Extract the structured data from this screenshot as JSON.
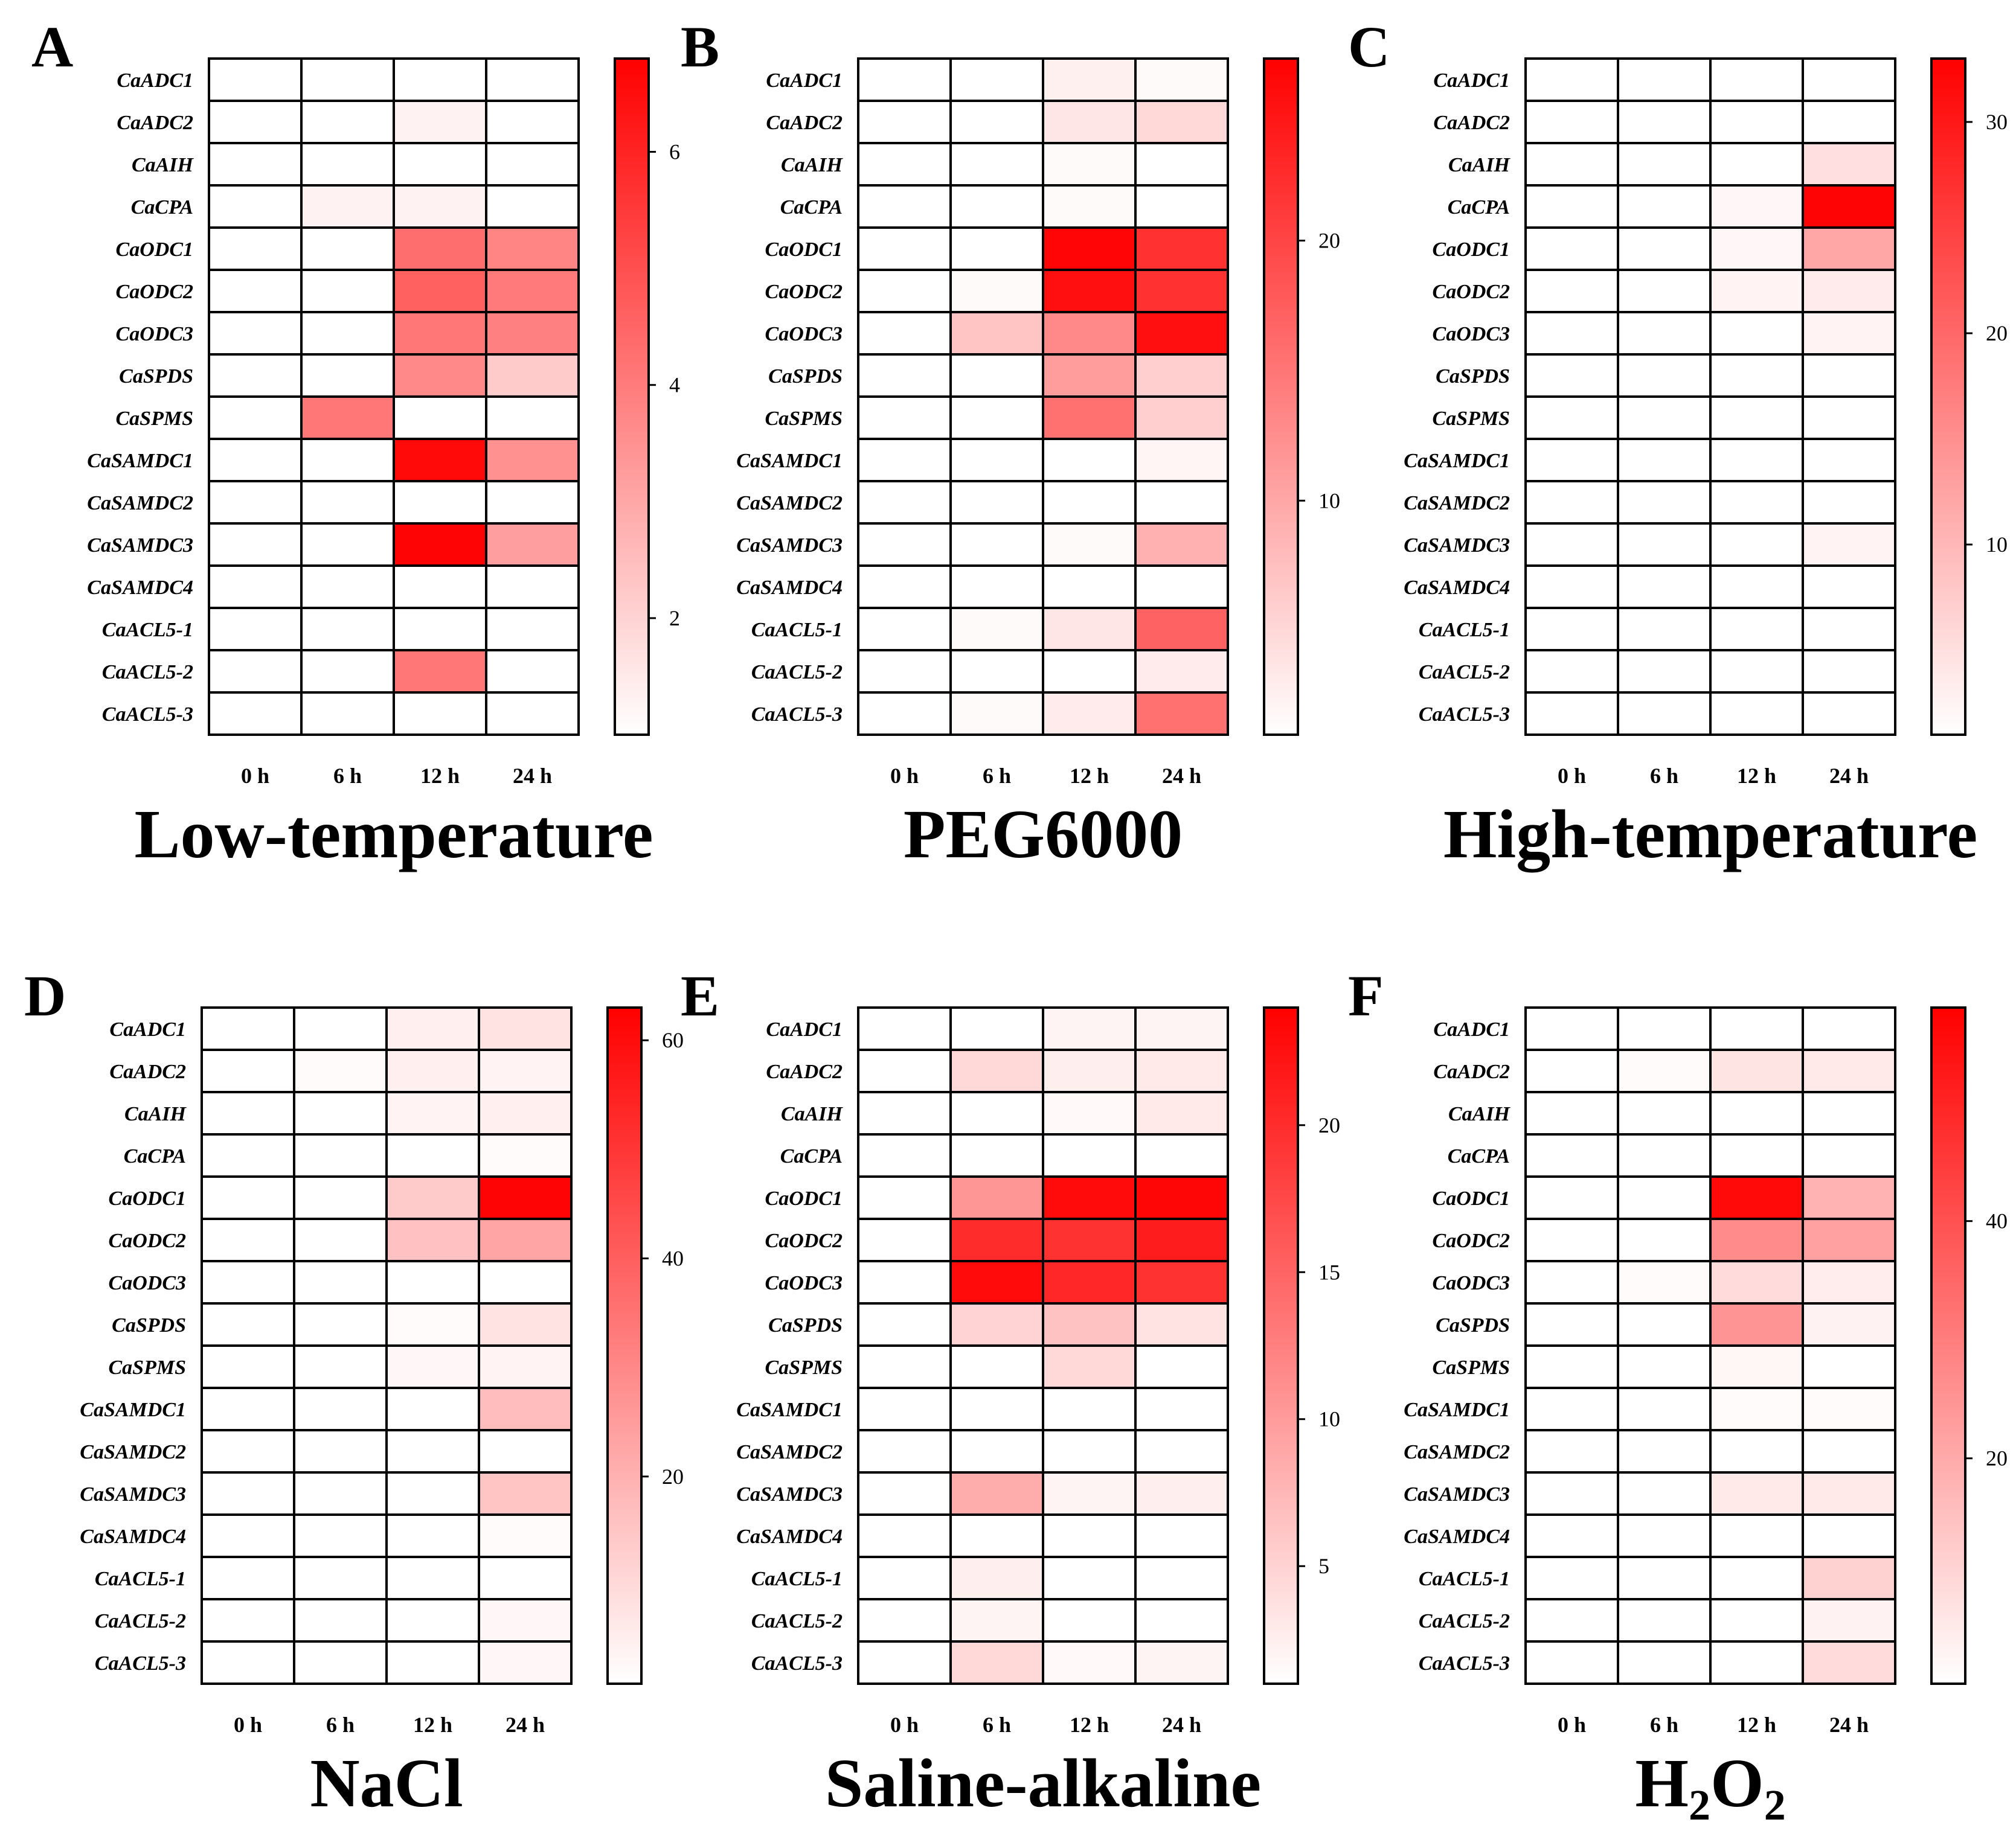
{
  "colors": {
    "low": "#ffffff",
    "high": "#ff0000",
    "grid": "#000000"
  },
  "genes": [
    "CaADC1",
    "CaADC2",
    "CaAIH",
    "CaCPA",
    "CaODC1",
    "CaODC2",
    "CaODC3",
    "CaSPDS",
    "CaSPMS",
    "CaSAMDC1",
    "CaSAMDC2",
    "CaSAMDC3",
    "CaSAMDC4",
    "CaACL5-1",
    "CaACL5-2",
    "CaACL5-3"
  ],
  "time_points": [
    "0 h",
    "6 h",
    "12 h",
    "24 h"
  ],
  "chart_data": [
    {
      "type": "heatmap",
      "panel": "A",
      "title": "Low-temperature",
      "scale_min": 1,
      "scale_max": 6.8,
      "ticks": [
        2,
        4,
        6
      ],
      "values": [
        [
          1,
          1,
          1,
          1
        ],
        [
          1,
          1,
          1.3,
          1
        ],
        [
          1,
          1,
          1,
          1
        ],
        [
          1,
          1.3,
          1.3,
          1
        ],
        [
          1,
          1,
          4.3,
          3.8
        ],
        [
          1,
          1,
          4.6,
          4.0
        ],
        [
          1,
          1,
          4.1,
          3.9
        ],
        [
          1,
          1,
          3.7,
          2.2
        ],
        [
          1,
          4.1,
          1,
          1
        ],
        [
          1,
          1,
          6.6,
          3.5
        ],
        [
          1,
          1,
          1,
          1
        ],
        [
          1,
          1,
          6.7,
          3.2
        ],
        [
          1,
          1,
          1,
          1
        ],
        [
          1,
          1,
          1,
          1
        ],
        [
          1,
          1,
          4.1,
          1
        ],
        [
          1,
          1,
          1,
          1
        ]
      ]
    },
    {
      "type": "heatmap",
      "panel": "B",
      "title": "PEG6000",
      "scale_min": 1,
      "scale_max": 27,
      "ticks": [
        10,
        20
      ],
      "values": [
        [
          1,
          1,
          2.5,
          1.5
        ],
        [
          1,
          1,
          3.5,
          5
        ],
        [
          1,
          1,
          1.5,
          1
        ],
        [
          1,
          1,
          1.5,
          1
        ],
        [
          1,
          1,
          26.5,
          22
        ],
        [
          1,
          1.5,
          25.5,
          22
        ],
        [
          1,
          7,
          13,
          25.5
        ],
        [
          1,
          1,
          11,
          6
        ],
        [
          1,
          1,
          15.5,
          6
        ],
        [
          1,
          1,
          1,
          2
        ],
        [
          1,
          1,
          1,
          1
        ],
        [
          1,
          1,
          1.5,
          9
        ],
        [
          1,
          1,
          1,
          1
        ],
        [
          1,
          1.5,
          3.5,
          17
        ],
        [
          1,
          1,
          1,
          3
        ],
        [
          1,
          1.5,
          3,
          15.5
        ]
      ]
    },
    {
      "type": "heatmap",
      "panel": "C",
      "title": "High-temperature",
      "sup_title": null,
      "scale_min": 1,
      "scale_max": 33,
      "ticks": [
        10,
        20,
        30
      ],
      "values": [
        [
          1,
          1,
          1,
          1
        ],
        [
          1,
          1,
          1,
          1
        ],
        [
          1,
          1,
          1,
          5
        ],
        [
          1,
          1,
          2,
          32.5
        ],
        [
          1,
          1,
          2,
          12
        ],
        [
          1,
          1,
          2.5,
          3.5
        ],
        [
          1,
          1,
          1,
          2.5
        ],
        [
          1,
          1,
          1,
          1
        ],
        [
          1,
          1,
          1,
          1
        ],
        [
          1,
          1,
          1,
          1
        ],
        [
          1,
          1,
          1,
          1
        ],
        [
          1,
          1,
          1,
          2.5
        ],
        [
          1,
          1,
          1,
          1
        ],
        [
          1,
          1,
          1,
          1
        ],
        [
          1,
          1,
          1,
          1
        ],
        [
          1,
          1,
          1,
          1
        ]
      ]
    },
    {
      "type": "heatmap",
      "panel": "D",
      "title": "NaCl",
      "scale_min": 1,
      "scale_max": 63,
      "ticks": [
        20,
        40,
        60
      ],
      "values": [
        [
          1,
          1,
          5,
          8
        ],
        [
          1,
          2,
          5,
          4
        ],
        [
          1,
          1,
          4,
          5
        ],
        [
          1,
          1,
          1,
          2
        ],
        [
          1,
          1,
          14,
          62
        ],
        [
          1,
          1,
          16,
          23
        ],
        [
          1,
          1,
          1,
          1
        ],
        [
          1,
          1,
          2,
          8
        ],
        [
          1,
          1,
          3,
          4
        ],
        [
          1,
          1,
          1,
          17
        ],
        [
          1,
          1,
          1,
          1
        ],
        [
          1,
          1,
          1,
          15
        ],
        [
          1,
          1,
          1,
          2
        ],
        [
          1,
          1,
          1,
          1
        ],
        [
          1,
          1,
          1,
          3
        ],
        [
          1,
          1,
          1,
          3
        ]
      ]
    },
    {
      "type": "heatmap",
      "panel": "E",
      "title": "Saline-alkaline",
      "scale_min": 1,
      "scale_max": 24,
      "ticks": [
        5,
        10,
        15,
        20
      ],
      "values": [
        [
          1,
          1,
          2,
          2
        ],
        [
          1,
          4.5,
          2.5,
          3
        ],
        [
          1,
          1,
          1.5,
          3
        ],
        [
          1,
          1,
          1,
          1
        ],
        [
          1,
          10.5,
          23,
          23.5
        ],
        [
          1,
          20,
          19.5,
          21.5
        ],
        [
          1,
          23,
          20.5,
          19.5
        ],
        [
          1,
          5,
          6.5,
          3.5
        ],
        [
          1,
          1,
          4.5,
          1
        ],
        [
          1,
          1,
          1,
          1
        ],
        [
          1,
          1,
          1,
          1
        ],
        [
          1,
          8.5,
          2,
          2.5
        ],
        [
          1,
          1,
          1,
          1
        ],
        [
          1,
          2.5,
          1,
          1
        ],
        [
          1,
          2,
          1,
          1
        ],
        [
          1,
          4.5,
          1.5,
          2
        ]
      ]
    },
    {
      "type": "heatmap",
      "panel": "F",
      "title": "H2O2",
      "title_main": "H",
      "title_sub1": "2",
      "title_mid": "O",
      "title_sub2": "2",
      "scale_min": 1,
      "scale_max": 58,
      "ticks": [
        20,
        40
      ],
      "values": [
        [
          1,
          1,
          1,
          1
        ],
        [
          1,
          2,
          7,
          6
        ],
        [
          1,
          1,
          1,
          1
        ],
        [
          1,
          1,
          1,
          1
        ],
        [
          1,
          1,
          56,
          18
        ],
        [
          1,
          1,
          27,
          22
        ],
        [
          1,
          2,
          9,
          5
        ],
        [
          1,
          1,
          25,
          4
        ],
        [
          1,
          1,
          3,
          1
        ],
        [
          1,
          1,
          2,
          2
        ],
        [
          1,
          1,
          1,
          1
        ],
        [
          1,
          1,
          6,
          6
        ],
        [
          1,
          1,
          1,
          1
        ],
        [
          1,
          1,
          1,
          11
        ],
        [
          1,
          1,
          1,
          4
        ],
        [
          1,
          1,
          1,
          9
        ]
      ]
    }
  ]
}
